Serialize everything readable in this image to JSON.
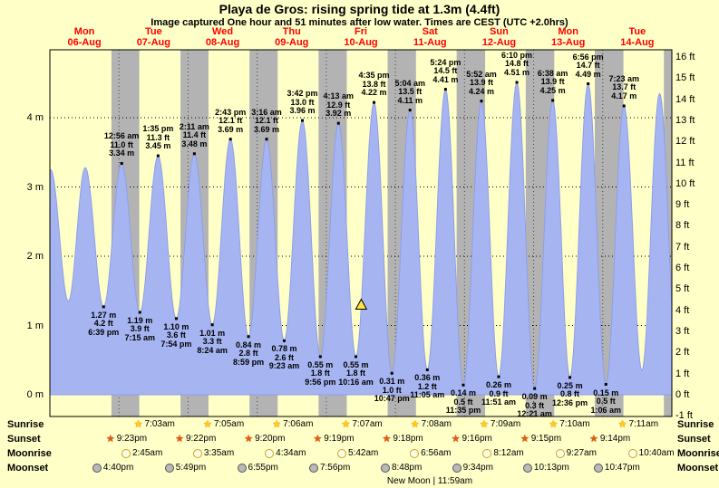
{
  "page": {
    "title": "Playa de Gros: rising  spring tide at 1.3m (4.4ft)",
    "subtitle": "Image captured One hour and 51 minutes after low water. Times are CEST (UTC +2.0hrs)"
  },
  "days": [
    {
      "name": "Mon",
      "date": "06-Aug"
    },
    {
      "name": "Tue",
      "date": "07-Aug"
    },
    {
      "name": "Wed",
      "date": "08-Aug"
    },
    {
      "name": "Thu",
      "date": "09-Aug"
    },
    {
      "name": "Fri",
      "date": "10-Aug"
    },
    {
      "name": "Sat",
      "date": "11-Aug"
    },
    {
      "name": "Sun",
      "date": "12-Aug"
    },
    {
      "name": "Mon",
      "date": "13-Aug"
    },
    {
      "name": "Tue",
      "date": "14-Aug"
    }
  ],
  "axes": {
    "left": [
      "4 m",
      "3 m",
      "2 m",
      "1 m",
      "0 m"
    ],
    "right": [
      "16 ft",
      "15 ft",
      "14 ft",
      "13 ft",
      "12 ft",
      "11 ft",
      "10 ft",
      "9 ft",
      "8 ft",
      "7 ft",
      "6 ft",
      "5 ft",
      "4 ft",
      "3 ft",
      "2 ft",
      "1 ft",
      "0 ft",
      "-1 ft"
    ]
  },
  "chart_data": {
    "type": "area",
    "title": "Playa de Gros: rising  spring tide at 1.3m (4.4ft)",
    "x_range_days": 9,
    "y_range_m": [
      -0.3,
      5.0
    ],
    "colors": {
      "background": "#ffffc8",
      "night_band": "#b3b3b3",
      "tide_fill": "#a6b5f2",
      "tide_edge": "#8e9ee8",
      "day_label": "#ff0000",
      "marker": "#000000",
      "current_marker_fill": "#ffe33e"
    },
    "tide_events": [
      {
        "day": -1,
        "hour": 18.2,
        "height_m": 1.35,
        "type": "low",
        "estimated": true
      },
      {
        "day": 0,
        "hour": 0.28,
        "height_m": 3.25,
        "type": "high",
        "estimated": true
      },
      {
        "day": 0,
        "hour": 6.42,
        "height_m": 1.35,
        "type": "low",
        "estimated": true
      },
      {
        "day": 0,
        "hour": 12.28,
        "height_m": 3.28,
        "type": "high",
        "estimated": true
      },
      {
        "day": 0,
        "hour": 18.65,
        "height_m": 1.27,
        "type": "low",
        "label": [
          "1.27 m",
          "4.2 ft",
          "6:39 pm"
        ]
      },
      {
        "day": 1,
        "hour": 0.93,
        "height_m": 3.34,
        "type": "high",
        "label": [
          "12:56 am",
          "11.0 ft",
          "3.34 m"
        ]
      },
      {
        "day": 1,
        "hour": 7.25,
        "height_m": 1.19,
        "type": "low",
        "label": [
          "1.19 m",
          "3.9 ft",
          "7:15 am"
        ]
      },
      {
        "day": 1,
        "hour": 13.58,
        "height_m": 3.45,
        "type": "high",
        "label": [
          "1:35 pm",
          "11.3 ft",
          "3.45 m"
        ]
      },
      {
        "day": 1,
        "hour": 19.9,
        "height_m": 1.1,
        "type": "low",
        "label": [
          "1.10 m",
          "3.6 ft",
          "7:54 pm"
        ]
      },
      {
        "day": 2,
        "hour": 2.18,
        "height_m": 3.48,
        "type": "high",
        "label": [
          "2:11 am",
          "11.4 ft",
          "3.48 m"
        ]
      },
      {
        "day": 2,
        "hour": 8.4,
        "height_m": 1.01,
        "type": "low",
        "label": [
          "1.01 m",
          "3.3 ft",
          "8:24 am"
        ]
      },
      {
        "day": 2,
        "hour": 14.72,
        "height_m": 3.69,
        "type": "high",
        "label": [
          "2:43 pm",
          "12.1 ft",
          "3.69 m"
        ]
      },
      {
        "day": 2,
        "hour": 20.98,
        "height_m": 0.84,
        "type": "low",
        "label": [
          "0.84 m",
          "2.8 ft",
          "8:59 pm"
        ]
      },
      {
        "day": 3,
        "hour": 3.27,
        "height_m": 3.69,
        "type": "high",
        "label": [
          "3:16 am",
          "12.1 ft",
          "3.69 m"
        ]
      },
      {
        "day": 3,
        "hour": 9.38,
        "height_m": 0.78,
        "type": "low",
        "label": [
          "0.78 m",
          "2.6 ft",
          "9:23 am"
        ]
      },
      {
        "day": 3,
        "hour": 15.7,
        "height_m": 3.96,
        "type": "high",
        "label": [
          "3:42 pm",
          "13.0 ft",
          "3.96 m"
        ]
      },
      {
        "day": 3,
        "hour": 21.93,
        "height_m": 0.55,
        "type": "low",
        "label": [
          "0.55 m",
          "1.8 ft",
          "9:56 pm"
        ]
      },
      {
        "day": 4,
        "hour": 4.22,
        "height_m": 3.92,
        "type": "high",
        "label": [
          "4:13 am",
          "12.9 ft",
          "3.92 m"
        ]
      },
      {
        "day": 4,
        "hour": 10.27,
        "height_m": 0.55,
        "type": "low",
        "label": [
          "0.55 m",
          "1.8 ft",
          "10:16 am"
        ]
      },
      {
        "day": 4,
        "hour": 16.58,
        "height_m": 4.22,
        "type": "high",
        "label": [
          "4:35 pm",
          "13.8 ft",
          "4.22 m"
        ]
      },
      {
        "day": 4,
        "hour": 22.78,
        "height_m": 0.31,
        "type": "low",
        "label": [
          "0.31 m",
          "1.0 ft",
          "10:47 pm"
        ]
      },
      {
        "day": 5,
        "hour": 5.07,
        "height_m": 4.11,
        "type": "high",
        "label": [
          "5:04 am",
          "13.5 ft",
          "4.11 m"
        ]
      },
      {
        "day": 5,
        "hour": 11.08,
        "height_m": 0.36,
        "type": "low",
        "label": [
          "0.36 m",
          "1.2 ft",
          "11:05 am"
        ]
      },
      {
        "day": 5,
        "hour": 17.4,
        "height_m": 4.41,
        "type": "high",
        "label": [
          "5:24 pm",
          "14.5 ft",
          "4.41 m"
        ]
      },
      {
        "day": 5,
        "hour": 23.58,
        "height_m": 0.14,
        "type": "low",
        "label": [
          "0.14 m",
          "0.5 ft",
          "11:35 pm"
        ]
      },
      {
        "day": 6,
        "hour": 5.87,
        "height_m": 4.24,
        "type": "high",
        "label": [
          "5:52 am",
          "13.9 ft",
          "4.24 m"
        ]
      },
      {
        "day": 6,
        "hour": 11.85,
        "height_m": 0.26,
        "type": "low",
        "label": [
          "0.26 m",
          "0.9 ft",
          "11:51 am"
        ]
      },
      {
        "day": 6,
        "hour": 18.17,
        "height_m": 4.51,
        "type": "high",
        "label": [
          "6:10 pm",
          "14.8 ft",
          "4.51 m"
        ]
      },
      {
        "day": 7,
        "hour": 0.35,
        "height_m": 0.09,
        "type": "low",
        "label": [
          "0.09 m",
          "0.3 ft",
          "12:21 am"
        ]
      },
      {
        "day": 7,
        "hour": 6.63,
        "height_m": 4.25,
        "type": "high",
        "label": [
          "6:38 am",
          "13.9 ft",
          "4.25 m"
        ]
      },
      {
        "day": 7,
        "hour": 12.6,
        "height_m": 0.25,
        "type": "low",
        "label": [
          "0.25 m",
          "0.8 ft",
          "12:36 pm"
        ]
      },
      {
        "day": 7,
        "hour": 18.93,
        "height_m": 4.49,
        "type": "high",
        "label": [
          "6:56 pm",
          "14.7 ft",
          "4.49 m"
        ]
      },
      {
        "day": 8,
        "hour": 1.1,
        "height_m": 0.15,
        "type": "low",
        "label": [
          "0.15 m",
          "0.5 ft",
          "1:06 am"
        ]
      },
      {
        "day": 8,
        "hour": 7.38,
        "height_m": 4.17,
        "type": "high",
        "label": [
          "7:23 am",
          "13.7 ft",
          "4.17 m"
        ]
      },
      {
        "day": 8,
        "hour": 13.6,
        "height_m": 0.35,
        "type": "low",
        "estimated": true
      },
      {
        "day": 8,
        "hour": 19.75,
        "height_m": 4.35,
        "type": "high",
        "estimated": true
      },
      {
        "day": 9,
        "hour": 2.0,
        "height_m": 0.3,
        "type": "low",
        "estimated": true
      }
    ],
    "current_marker": {
      "day": 4,
      "hour": 12.12
    }
  },
  "astro": {
    "sunrise": {
      "label": "Sunrise",
      "entries": [
        {
          "day": 1,
          "time": "7:03am"
        },
        {
          "day": 2,
          "time": "7:05am"
        },
        {
          "day": 3,
          "time": "7:06am"
        },
        {
          "day": 4,
          "time": "7:07am"
        },
        {
          "day": 5,
          "time": "7:08am"
        },
        {
          "day": 6,
          "time": "7:09am"
        },
        {
          "day": 7,
          "time": "7:10am"
        },
        {
          "day": 8,
          "time": "7:11am"
        }
      ]
    },
    "sunset": {
      "label": "Sunset",
      "entries": [
        {
          "day": 0,
          "time": "9:23pm"
        },
        {
          "day": 1,
          "time": "9:22pm"
        },
        {
          "day": 2,
          "time": "9:20pm"
        },
        {
          "day": 3,
          "time": "9:19pm"
        },
        {
          "day": 4,
          "time": "9:18pm"
        },
        {
          "day": 5,
          "time": "9:16pm"
        },
        {
          "day": 6,
          "time": "9:15pm"
        },
        {
          "day": 7,
          "time": "9:14pm"
        }
      ]
    },
    "moonrise": {
      "label": "Moonrise",
      "entries": [
        {
          "day": 1,
          "time": "2:45am"
        },
        {
          "day": 2,
          "time": "3:35am"
        },
        {
          "day": 3,
          "time": "4:34am"
        },
        {
          "day": 4,
          "time": "5:42am"
        },
        {
          "day": 5,
          "time": "6:56am"
        },
        {
          "day": 6,
          "time": "8:12am"
        },
        {
          "day": 7,
          "time": "9:27am"
        },
        {
          "day": 8,
          "time": "10:40am"
        }
      ]
    },
    "moonset": {
      "label": "Moonset",
      "entries": [
        {
          "day": 0,
          "time": "4:40pm"
        },
        {
          "day": 1,
          "time": "5:49pm"
        },
        {
          "day": 2,
          "time": "6:55pm"
        },
        {
          "day": 3,
          "time": "7:56pm"
        },
        {
          "day": 4,
          "time": "8:48pm"
        },
        {
          "day": 5,
          "time": "9:34pm"
        },
        {
          "day": 6,
          "time": "10:13pm"
        },
        {
          "day": 7,
          "time": "10:47pm"
        }
      ]
    },
    "new_moon": "New Moon | 11:59am"
  }
}
